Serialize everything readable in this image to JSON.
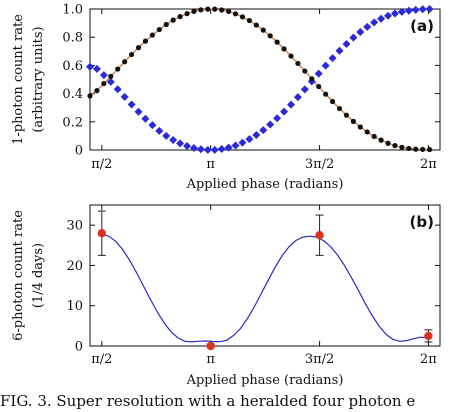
{
  "caption": "FIG. 3.  Super resolution with a heralded four photon e",
  "chart_data": [
    {
      "id": "a",
      "type": "scatter",
      "panel_tag": "(a)",
      "xlabel": "Applied phase (radians)",
      "ylabel": "1-photon count rate",
      "ylabel2": "(arbitrary units)",
      "xlim": [
        1.4,
        6.45
      ],
      "ylim": [
        0,
        1
      ],
      "x_ticks": [
        {
          "value": 1.5708,
          "label": "π/2"
        },
        {
          "value": 3.1416,
          "label": "π"
        },
        {
          "value": 4.7124,
          "label": "3π/2"
        },
        {
          "value": 6.2832,
          "label": "2π"
        }
      ],
      "y_ticks": [
        {
          "value": 0,
          "label": "0"
        },
        {
          "value": 0.2,
          "label": "0.2"
        },
        {
          "value": 0.4,
          "label": "0.4"
        },
        {
          "value": 0.6,
          "label": "0.6"
        },
        {
          "value": 0.8,
          "label": "0.8"
        },
        {
          "value": 1,
          "label": "1.0"
        }
      ],
      "series": [
        {
          "marker": "circle",
          "color": "#111111",
          "fit_color": "#d9763a",
          "x": [
            1.4,
            1.5,
            1.6,
            1.7,
            1.8,
            1.9,
            2.0,
            2.1,
            2.2,
            2.3,
            2.4,
            2.5,
            2.6,
            2.7,
            2.8,
            2.9,
            3.0,
            3.1,
            3.2,
            3.3,
            3.4,
            3.5,
            3.6,
            3.7,
            3.8,
            3.9,
            4.0,
            4.1,
            4.2,
            4.3,
            4.4,
            4.5,
            4.6,
            4.7,
            4.8,
            4.9,
            5.0,
            5.1,
            5.2,
            5.3,
            5.4,
            5.5,
            5.6,
            5.7,
            5.8,
            5.9,
            6.0,
            6.1,
            6.2,
            6.3
          ],
          "y": [
            0.384,
            0.421,
            0.471,
            0.522,
            0.574,
            0.626,
            0.677,
            0.726,
            0.772,
            0.815,
            0.854,
            0.89,
            0.921,
            0.946,
            0.967,
            0.983,
            0.994,
            0.999,
            0.999,
            0.993,
            0.983,
            0.966,
            0.944,
            0.918,
            0.886,
            0.85,
            0.81,
            0.765,
            0.717,
            0.666,
            0.614,
            0.56,
            0.505,
            0.45,
            0.396,
            0.344,
            0.294,
            0.247,
            0.203,
            0.163,
            0.128,
            0.096,
            0.07,
            0.048,
            0.031,
            0.019,
            0.011,
            0.006,
            0.004,
            0.003
          ]
        },
        {
          "marker": "diamond",
          "color": "#2a2ad8",
          "x": [
            1.4,
            1.5,
            1.6,
            1.7,
            1.8,
            1.9,
            2.0,
            2.1,
            2.2,
            2.3,
            2.4,
            2.5,
            2.6,
            2.7,
            2.8,
            2.9,
            3.0,
            3.1,
            3.2,
            3.3,
            3.4,
            3.5,
            3.6,
            3.7,
            3.8,
            3.9,
            4.0,
            4.1,
            4.2,
            4.3,
            4.4,
            4.5,
            4.6,
            4.7,
            4.8,
            4.9,
            5.0,
            5.1,
            5.2,
            5.3,
            5.4,
            5.5,
            5.6,
            5.7,
            5.8,
            5.9,
            6.0,
            6.1,
            6.2,
            6.3
          ],
          "y": [
            0.59,
            0.575,
            0.531,
            0.483,
            0.431,
            0.377,
            0.323,
            0.271,
            0.222,
            0.176,
            0.136,
            0.1,
            0.071,
            0.047,
            0.028,
            0.014,
            0.005,
            0.001,
            0.001,
            0.007,
            0.017,
            0.032,
            0.052,
            0.077,
            0.106,
            0.141,
            0.181,
            0.225,
            0.272,
            0.322,
            0.375,
            0.43,
            0.486,
            0.542,
            0.598,
            0.652,
            0.704,
            0.752,
            0.797,
            0.837,
            0.873,
            0.905,
            0.931,
            0.952,
            0.968,
            0.98,
            0.988,
            0.994,
            0.998,
            1.0
          ]
        }
      ]
    },
    {
      "id": "b",
      "type": "scatter",
      "panel_tag": "(b)",
      "xlabel": "Applied phase (radians)",
      "ylabel": "6-photon count rate",
      "ylabel2": "(1/4 days)",
      "xlim": [
        1.4,
        6.45
      ],
      "ylim": [
        0,
        35
      ],
      "x_ticks": [
        {
          "value": 1.5708,
          "label": "π/2"
        },
        {
          "value": 3.1416,
          "label": "π"
        },
        {
          "value": 4.7124,
          "label": "3π/2"
        },
        {
          "value": 6.2832,
          "label": "2π"
        }
      ],
      "y_ticks": [
        {
          "value": 0,
          "label": "0"
        },
        {
          "value": 10,
          "label": "10"
        },
        {
          "value": 20,
          "label": "20"
        },
        {
          "value": 30,
          "label": "30"
        }
      ],
      "points": {
        "color": "#d9321f",
        "x": [
          1.5708,
          3.1416,
          4.7124,
          6.2832
        ],
        "y": [
          28,
          0,
          27.5,
          2.5
        ],
        "err": [
          5.5,
          0.5,
          5,
          1.5
        ]
      },
      "fit": {
        "color": "#2b2bc4",
        "x": [
          1.5708,
          1.6708,
          1.7708,
          1.8708,
          1.9708,
          2.0708,
          2.1708,
          2.2708,
          2.3708,
          2.4708,
          2.5708,
          2.6708,
          2.7708,
          2.8708,
          2.9708,
          3.0708,
          3.1708,
          3.2708,
          3.3708,
          3.4708,
          3.5708,
          3.6708,
          3.7708,
          3.8708,
          3.9708,
          4.0708,
          4.1708,
          4.2708,
          4.3708,
          4.4708,
          4.5708,
          4.6708,
          4.7708,
          4.8708,
          4.9708,
          5.0708,
          5.1708,
          5.2708,
          5.3708,
          5.4708,
          5.5708,
          5.6708,
          5.7708,
          5.8708,
          5.9708,
          6.0708,
          6.1708,
          6.2708
        ],
        "y": [
          27.69,
          27.25,
          25.98,
          23.95,
          21.31,
          18.23,
          14.92,
          11.59,
          8.45,
          5.7,
          3.51,
          1.98,
          1.16,
          1.01,
          1.2,
          1.25,
          1.11,
          1.06,
          1.42,
          2.6,
          4.35,
          6.77,
          9.72,
          13.0,
          16.34,
          19.54,
          22.36,
          24.62,
          26.2,
          27.02,
          27.25,
          27.04,
          26.17,
          24.66,
          22.6,
          20.03,
          17.06,
          13.85,
          10.6,
          7.56,
          4.93,
          2.91,
          1.65,
          1.17,
          1.33,
          1.81,
          2.19,
          2.05
        ]
      }
    }
  ]
}
